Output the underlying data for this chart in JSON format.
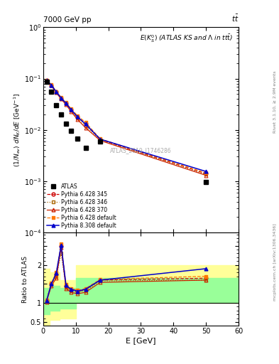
{
  "title_left": "7000 GeV pp",
  "title_right": "tt̅",
  "annotation": "E(K$_S^0$) (ATLAS KS and Λ in tt̅)",
  "atlas_label": "ATLAS_2019_I1746286",
  "xlabel": "E [GeV]",
  "ylabel_main": "(1/N$_{ev}$) dN$_K$/dE [GeV$^{-1}$]",
  "ylabel_ratio": "Ratio to ATLAS",
  "xlim": [
    0,
    60
  ],
  "ylim_main_lo": 0.0001,
  "ylim_main_hi": 1.0,
  "ylim_ratio_lo": 0.4,
  "ylim_ratio_hi": 2.85,
  "atlas_x": [
    1.0,
    2.5,
    4.0,
    5.5,
    7.0,
    8.5,
    10.5,
    13.0,
    17.5,
    50.0
  ],
  "atlas_y": [
    0.087,
    0.055,
    0.03,
    0.02,
    0.013,
    0.0095,
    0.0067,
    0.0045,
    0.0059,
    0.00095
  ],
  "mc_x": [
    1.0,
    2.5,
    4.0,
    5.5,
    7.0,
    8.5,
    10.5,
    13.0,
    17.5,
    50.0
  ],
  "py6_345_y": [
    0.092,
    0.075,
    0.055,
    0.042,
    0.033,
    0.025,
    0.018,
    0.013,
    0.0065,
    0.0014
  ],
  "py6_346_y": [
    0.091,
    0.074,
    0.054,
    0.041,
    0.032,
    0.024,
    0.017,
    0.012,
    0.0064,
    0.00135
  ],
  "py6_370_y": [
    0.09,
    0.073,
    0.053,
    0.04,
    0.031,
    0.023,
    0.016,
    0.011,
    0.0062,
    0.0013
  ],
  "py6_def_y": [
    0.093,
    0.076,
    0.056,
    0.043,
    0.034,
    0.026,
    0.019,
    0.014,
    0.0067,
    0.00145
  ],
  "py8_def_y": [
    0.092,
    0.075,
    0.055,
    0.042,
    0.033,
    0.025,
    0.018,
    0.013,
    0.0066,
    0.00155
  ],
  "ratio_py6_345_y": [
    1.06,
    1.5,
    1.75,
    2.5,
    1.45,
    1.35,
    1.3,
    1.35,
    1.6,
    1.65
  ],
  "ratio_py6_346_y": [
    1.05,
    1.48,
    1.7,
    2.3,
    1.42,
    1.32,
    1.28,
    1.32,
    1.58,
    1.6
  ],
  "ratio_py6_370_y": [
    1.03,
    1.45,
    1.65,
    2.45,
    1.38,
    1.28,
    1.24,
    1.28,
    1.54,
    1.6
  ],
  "ratio_py6_def_y": [
    1.07,
    1.52,
    1.8,
    2.55,
    1.48,
    1.38,
    1.33,
    1.38,
    1.62,
    1.7
  ],
  "ratio_py8_def_y": [
    1.06,
    1.5,
    1.78,
    2.52,
    1.46,
    1.36,
    1.31,
    1.36,
    1.6,
    1.9
  ],
  "yellow_steps_x": [
    0,
    2,
    2,
    5,
    5,
    10,
    10,
    20,
    20,
    60
  ],
  "yellow_lo": [
    0.4,
    0.4,
    0.55,
    0.55,
    0.6,
    0.6,
    1.0,
    1.0,
    1.0,
    1.0
  ],
  "yellow_hi": [
    1.9,
    1.9,
    1.8,
    1.8,
    1.6,
    1.6,
    2.0,
    2.0,
    2.0,
    2.0
  ],
  "green_steps_x": [
    0,
    2,
    2,
    5,
    5,
    10,
    10,
    20,
    20,
    60
  ],
  "green_lo": [
    0.7,
    0.7,
    0.8,
    0.8,
    0.85,
    0.85,
    1.0,
    1.0,
    1.0,
    1.0
  ],
  "green_hi": [
    1.4,
    1.4,
    1.45,
    1.45,
    1.4,
    1.4,
    1.65,
    1.65,
    1.65,
    1.65
  ],
  "color_py6_345": "#cc0000",
  "color_py6_346": "#aa6600",
  "color_py6_370": "#cc2200",
  "color_py6_def": "#ff7700",
  "color_py8_def": "#0000cc",
  "color_yellow": "#ffff99",
  "color_green": "#99ff99",
  "background_color": "#ffffff"
}
